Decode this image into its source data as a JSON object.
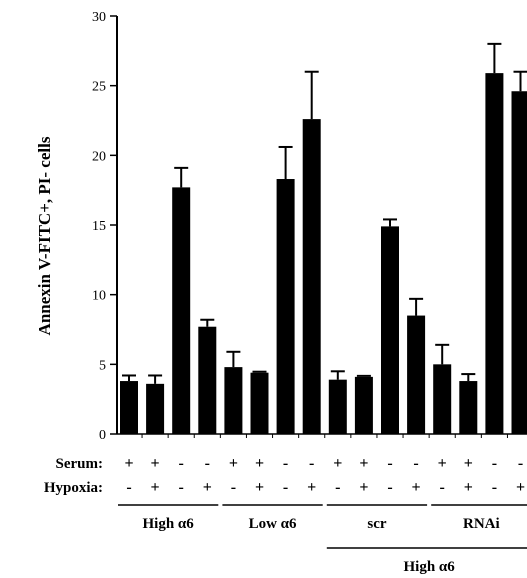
{
  "chart_data": {
    "type": "bar",
    "ylabel": "Annexin V-FITC+, PI- cells",
    "ylim": [
      0,
      30
    ],
    "yticks": [
      0,
      5,
      10,
      15,
      20,
      25,
      30
    ],
    "values": [
      3.8,
      3.6,
      17.7,
      7.7,
      4.8,
      4.4,
      18.3,
      22.6,
      3.9,
      4.1,
      14.9,
      8.5,
      5.0,
      3.8,
      25.9,
      24.6
    ],
    "errors": [
      0.4,
      0.6,
      1.4,
      0.5,
      1.1,
      0,
      2.3,
      3.4,
      0.6,
      0,
      0.5,
      1.2,
      1.4,
      0.5,
      2.1,
      1.4
    ],
    "row_labels": [
      "Serum:",
      "Hypoxia:"
    ],
    "serum": [
      "+",
      "+",
      "-",
      "-",
      "+",
      "+",
      "-",
      "-",
      "+",
      "+",
      "-",
      "-",
      "+",
      "+",
      "-",
      "-"
    ],
    "hypoxia": [
      "-",
      "+",
      "-",
      "+",
      "-",
      "+",
      "-",
      "+",
      "-",
      "+",
      "-",
      "+",
      "-",
      "+",
      "-",
      "+"
    ],
    "groups": [
      "High α6",
      "Low α6",
      "scr",
      "RNAi"
    ],
    "supergroup": "High α6",
    "bar_color": "#000000",
    "grid": false
  }
}
